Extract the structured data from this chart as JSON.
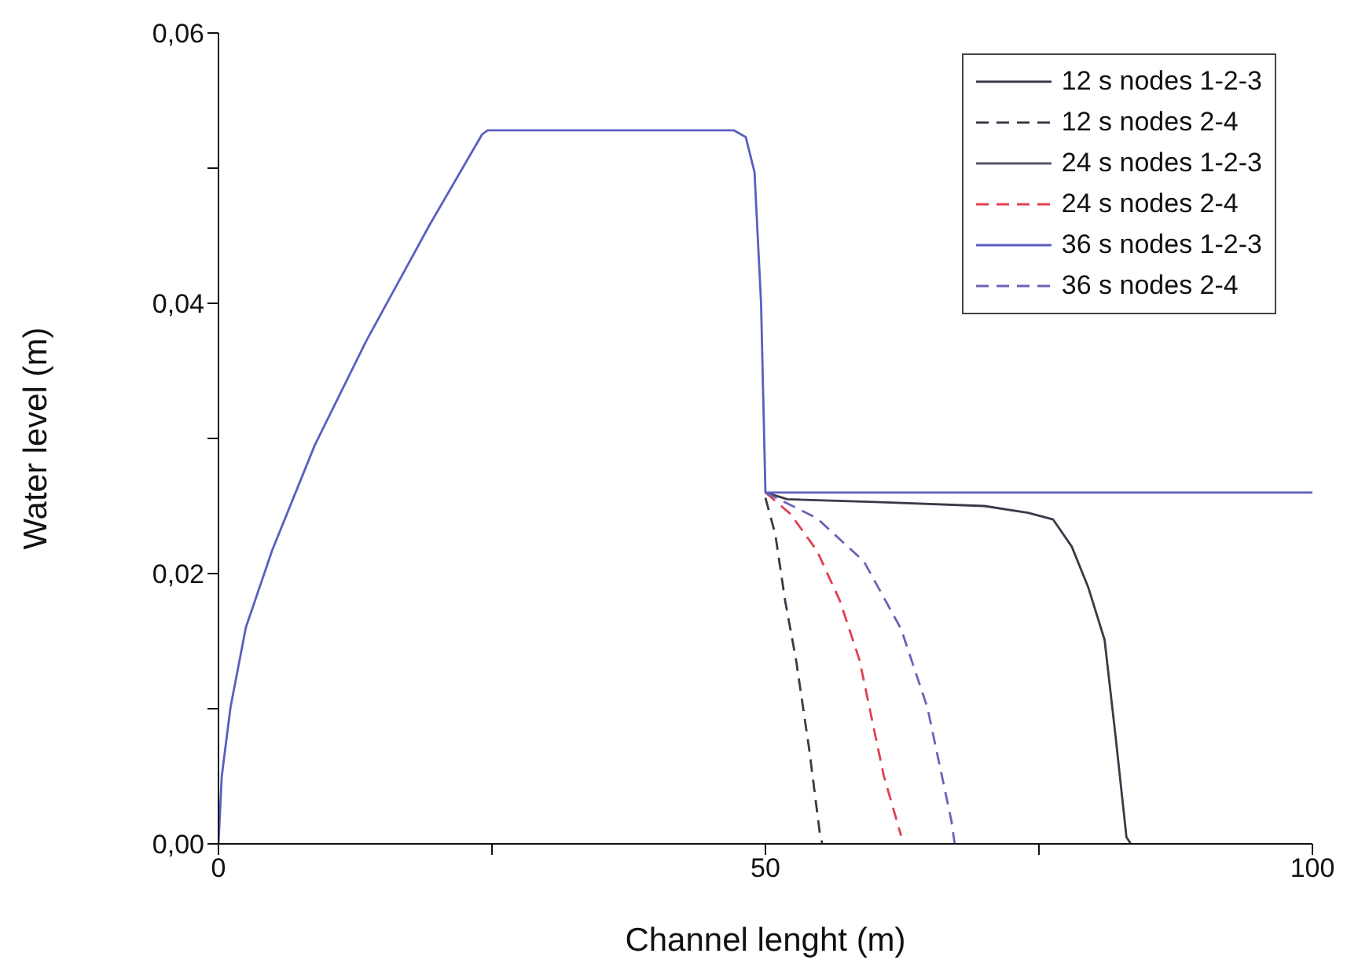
{
  "chart_data": {
    "type": "line",
    "xlabel": "Channel lenght (m)",
    "ylabel": "Water level (m)",
    "xlim": [
      0,
      100
    ],
    "ylim": [
      0,
      0.06
    ],
    "xticks": [
      0,
      {
        "value": 25,
        "label": null
      },
      50,
      {
        "value": 75,
        "label": null
      },
      100
    ],
    "yticks": [
      {
        "value": 0,
        "label": "0,00"
      },
      {
        "value": 0.01,
        "label": null
      },
      {
        "value": 0.02,
        "label": "0,02"
      },
      {
        "value": 0.03,
        "label": null
      },
      {
        "value": 0.04,
        "label": "0,04"
      },
      {
        "value": 0.05,
        "label": null
      },
      {
        "value": 0.06,
        "label": "0,06"
      }
    ],
    "grid": false,
    "legend": "top right",
    "marker": "none",
    "series": [
      {
        "name": "12 s nodes 1-2-3",
        "color": "#3a3a48",
        "line_style": "solid",
        "x": [
          50,
          52,
          60,
          70,
          74,
          76.3,
          78,
          79.5,
          81,
          82,
          83,
          83.4
        ],
        "values": [
          0.026,
          0.0255,
          0.0253,
          0.025,
          0.0245,
          0.024,
          0.022,
          0.019,
          0.0151,
          0.008,
          0.0005,
          0
        ]
      },
      {
        "name": "12 s nodes 2-4",
        "color": "#3a3a48",
        "line_style": "dashed",
        "x": [
          50,
          50.9,
          51.8,
          52.8,
          54,
          55,
          55.2
        ],
        "values": [
          0.0256,
          0.0229,
          0.018,
          0.0136,
          0.007,
          0.0006,
          0
        ]
      },
      {
        "name": "24 s nodes 1-2-3",
        "color": "#555566",
        "line_style": "solid"
      },
      {
        "name": "24 s nodes 2-4",
        "color": "#e04050",
        "line_style": "dashed",
        "x": [
          50,
          52.3,
          54.7,
          56.8,
          58.6,
          60.8,
          62.4
        ],
        "values": [
          0.026,
          0.0244,
          0.0217,
          0.018,
          0.0136,
          0.0051,
          0.0006
        ]
      },
      {
        "name": "36 s nodes 1-2-3",
        "color": "#5a5fbf",
        "line_style": "solid",
        "x": [
          0,
          0.3,
          1.1,
          2.5,
          4.9,
          8.8,
          13.5,
          19.3,
          24.1,
          24.6,
          47.1,
          48.2,
          49,
          49.6,
          50,
          100
        ],
        "values": [
          0,
          0.005,
          0.0101,
          0.016,
          0.0217,
          0.0295,
          0.0372,
          0.0458,
          0.0525,
          0.0528,
          0.0528,
          0.0523,
          0.0497,
          0.04,
          0.026,
          0.026
        ]
      },
      {
        "name": "36 s nodes 2-4",
        "color": "#7060b8",
        "line_style": "dashed",
        "x": [
          50,
          54.7,
          59,
          62.4,
          64.8,
          67,
          67.3
        ],
        "values": [
          0.026,
          0.0241,
          0.0209,
          0.0159,
          0.0101,
          0.0017,
          0
        ]
      }
    ]
  }
}
